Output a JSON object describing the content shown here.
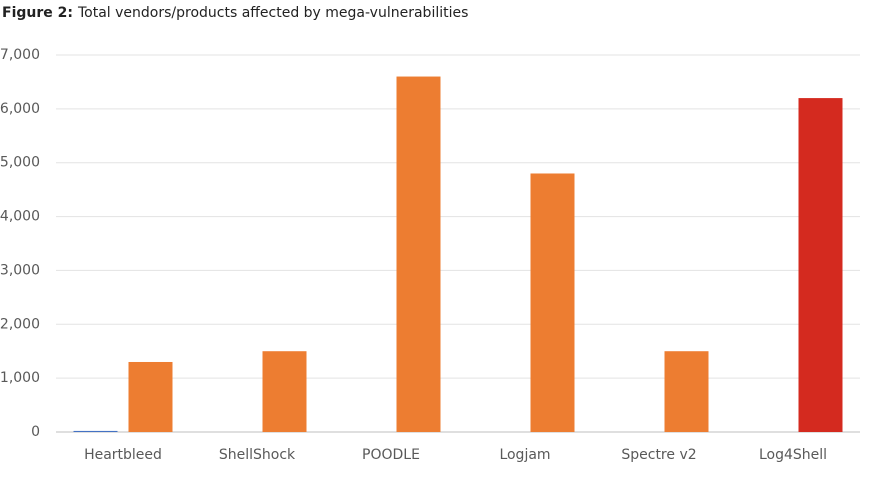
{
  "chart_data": {
    "type": "bar",
    "title_label": "Figure 2:",
    "title": "Total vendors/products affected by mega-vulnerabilities",
    "categories": [
      "Heartbleed",
      "ShellShock",
      "POODLE",
      "Logjam",
      "Spectre v2",
      "Log4Shell"
    ],
    "series": [
      {
        "color": "#4472c4",
        "values": [
          20,
          null,
          null,
          null,
          null,
          null
        ]
      },
      {
        "color": "#ed7d31",
        "colors": [
          "#ed7d31",
          "#ed7d31",
          "#ed7d31",
          "#ed7d31",
          "#ed7d31",
          "#d42a1f"
        ],
        "values": [
          1300,
          1500,
          6600,
          4800,
          1500,
          6200
        ]
      }
    ],
    "ylim": [
      0,
      7000
    ],
    "yticks": [
      0,
      {
        "value": 1000,
        "label": "1,000"
      },
      {
        "value": 2000,
        "label": "2,000"
      },
      {
        "value": 3000,
        "label": "3,000"
      },
      {
        "value": 4000,
        "label": "4,000"
      },
      {
        "value": 5000,
        "label": "5,000"
      },
      {
        "value": 6000,
        "label": "6,000"
      },
      {
        "value": 7000,
        "label": "7,000"
      }
    ],
    "grid": true
  }
}
